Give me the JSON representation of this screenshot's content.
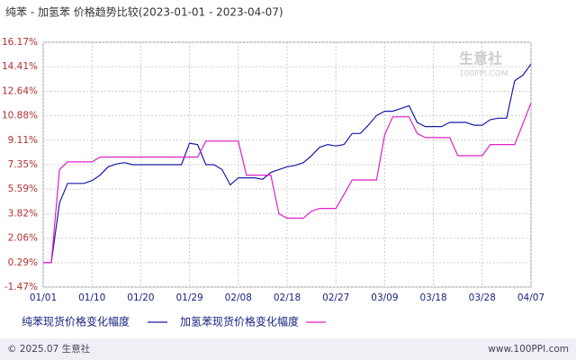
{
  "chart_data": {
    "type": "line",
    "title": "纯苯 - 加氢苯 价格趋势比较(2023-01-01 - 2023-04-07)",
    "watermark": [
      "生意社",
      "100PPI.COM"
    ],
    "footer": {
      "left": "© 2025.07 生意社",
      "right": "www.100PPI.com"
    },
    "categories": [
      "01/01",
      null,
      null,
      null,
      null,
      null,
      "01/10",
      null,
      null,
      null,
      null,
      null,
      "01/20",
      null,
      null,
      null,
      null,
      null,
      "01/29",
      null,
      null,
      null,
      null,
      null,
      "02/08",
      null,
      null,
      null,
      null,
      null,
      "02/18",
      null,
      null,
      null,
      null,
      null,
      "02/27",
      null,
      null,
      null,
      null,
      null,
      "03/09",
      null,
      null,
      null,
      null,
      null,
      "03/18",
      null,
      null,
      null,
      null,
      null,
      "03/28",
      null,
      null,
      null,
      null,
      null,
      "04/07"
    ],
    "series": [
      {
        "name": "纯苯现货价格变化幅度",
        "color": "#1a1aa8",
        "values": [
          0.29,
          0.29,
          4.6,
          6.0,
          6.0,
          6.0,
          6.2,
          6.6,
          7.2,
          7.4,
          7.5,
          7.35,
          7.35,
          7.35,
          7.35,
          7.35,
          7.35,
          7.35,
          8.9,
          8.8,
          7.35,
          7.35,
          7.0,
          5.9,
          6.4,
          6.4,
          6.4,
          6.3,
          6.8,
          7.0,
          7.2,
          7.3,
          7.5,
          8.0,
          8.6,
          8.8,
          8.7,
          8.8,
          9.6,
          9.6,
          10.2,
          10.9,
          11.2,
          11.2,
          11.4,
          11.6,
          10.4,
          10.1,
          10.1,
          10.1,
          10.4,
          10.4,
          10.4,
          10.2,
          10.2,
          10.6,
          10.7,
          10.7,
          13.4,
          13.8,
          14.6
        ]
      },
      {
        "name": "加氢苯现货价格变化幅度",
        "color": "#e020c8",
        "values": [
          0.29,
          0.29,
          7.0,
          7.55,
          7.55,
          7.55,
          7.55,
          7.9,
          7.9,
          7.9,
          7.9,
          7.9,
          7.9,
          7.9,
          7.9,
          7.9,
          7.9,
          7.9,
          7.9,
          7.9,
          9.05,
          9.05,
          9.05,
          9.05,
          9.05,
          6.6,
          6.6,
          6.6,
          6.6,
          3.8,
          3.5,
          3.5,
          3.5,
          4.0,
          4.2,
          4.2,
          4.2,
          5.2,
          6.25,
          6.25,
          6.25,
          6.25,
          9.5,
          10.8,
          10.8,
          10.8,
          9.6,
          9.3,
          9.3,
          9.3,
          9.3,
          8.0,
          8.0,
          8.0,
          8.0,
          8.8,
          8.8,
          8.8,
          8.8,
          10.3,
          11.8
        ]
      }
    ],
    "ylim": [
      -1.47,
      16.17
    ],
    "yticks": [
      {
        "value": -1.47,
        "label": "-1.47%"
      },
      {
        "value": 0.29,
        "label": "0.29%"
      },
      {
        "value": 2.06,
        "label": "2.06%"
      },
      {
        "value": 3.82,
        "label": "3.82%"
      },
      {
        "value": 5.59,
        "label": "5.59%"
      },
      {
        "value": 7.35,
        "label": "7.35%"
      },
      {
        "value": 9.11,
        "label": "9.11%"
      },
      {
        "value": 10.88,
        "label": "10.88%"
      },
      {
        "value": 12.64,
        "label": "12.64%"
      },
      {
        "value": 14.41,
        "label": "14.41%"
      },
      {
        "value": 16.17,
        "label": "16.17%"
      }
    ],
    "grid": true
  }
}
